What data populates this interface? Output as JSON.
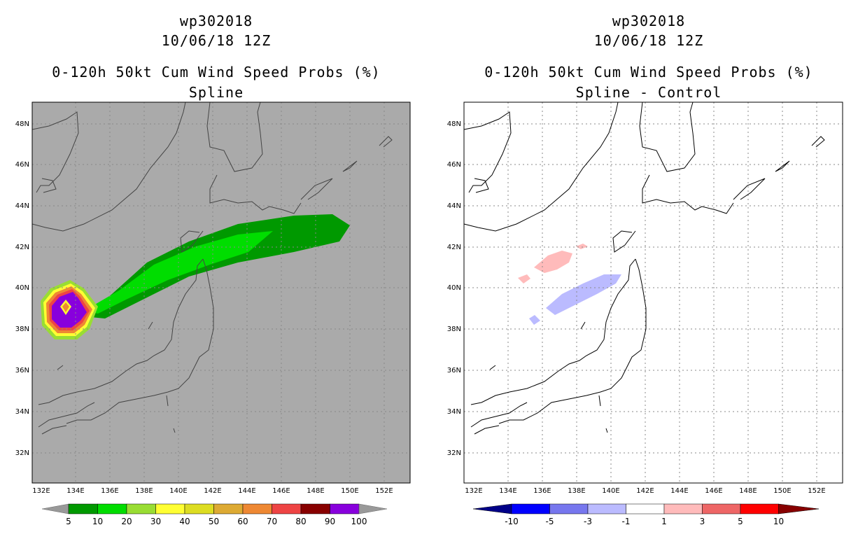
{
  "panels": [
    {
      "storm_id": "wp302018",
      "datetime": "10/06/18 12Z",
      "product": "0-120h 50kt Cum Wind Speed Probs (%)",
      "method": "Spline",
      "background": "#aaaaaa",
      "colorbar": {
        "labels": [
          "5",
          "10",
          "20",
          "30",
          "40",
          "50",
          "60",
          "70",
          "80",
          "90",
          "100"
        ],
        "colors": [
          "#009900",
          "#00dd00",
          "#99dd33",
          "#ffff33",
          "#dddd22",
          "#ddaa33",
          "#ee8833",
          "#ee4444",
          "#880000",
          "#8800dd"
        ],
        "end_color": "#999999"
      }
    },
    {
      "storm_id": "wp302018",
      "datetime": "10/06/18 12Z",
      "product": "0-120h 50kt Cum Wind Speed Probs (%)",
      "method": "Spline - Control",
      "background": "#ffffff",
      "colorbar": {
        "labels": [
          "-10",
          "-5",
          "-3",
          "-1",
          "1",
          "3",
          "5",
          "10"
        ],
        "colors": [
          "#0000cc",
          "#0000ff",
          "#7777ee",
          "#bbbbff",
          "#ffffff",
          "#ffbbbb",
          "#ee6666",
          "#ff0000",
          "#990000"
        ],
        "end_low": "#000088",
        "end_high": "#880000"
      }
    }
  ],
  "map": {
    "lat_labels": [
      "48N",
      "46N",
      "44N",
      "42N",
      "40N",
      "38N",
      "36N",
      "34N",
      "32N"
    ],
    "lon_labels": [
      "132E",
      "134E",
      "136E",
      "138E",
      "140E",
      "142E",
      "144E",
      "146E",
      "148E",
      "150E",
      "152E"
    ]
  }
}
